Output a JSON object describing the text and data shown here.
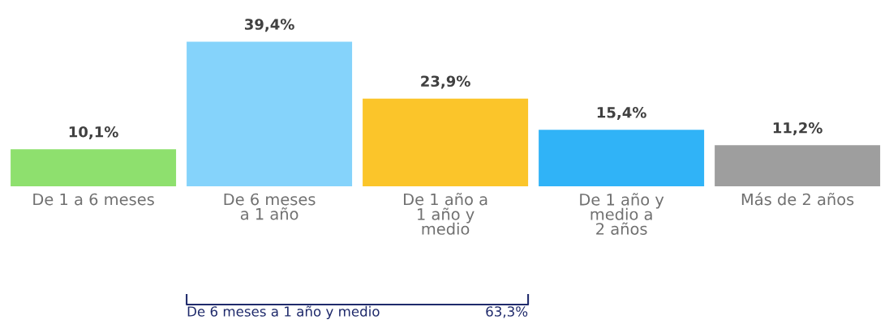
{
  "chart_data": {
    "type": "bar",
    "categories": [
      "De 1 a 6 meses",
      "De 6 meses\na 1 año",
      "De 1 año a\n1 año y\nmedio",
      "De 1 año y\nmedio a\n2 años",
      "Más de 2 años"
    ],
    "values": [
      10.1,
      39.4,
      23.9,
      15.4,
      11.2
    ],
    "value_labels": [
      "10,1%",
      "39,4%",
      "23,9%",
      "15,4%",
      "11,2%"
    ],
    "colors": [
      "#8ee06e",
      "#85d3fb",
      "#fbc52a",
      "#30b3f7",
      "#9e9e9e"
    ],
    "annotations": [
      "De 6 meses a 1 año y medio",
      "63,3%"
    ],
    "grid": false,
    "legend": false
  }
}
